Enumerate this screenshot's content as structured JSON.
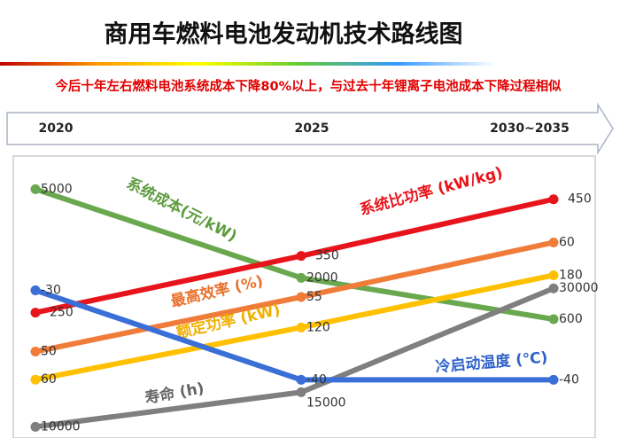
{
  "chart_data": {
    "type": "line",
    "title": "商用车燃料电池发动机技术路线图",
    "subtitle": "今后十年左右燃料电池系统成本下降80%以上，与过去十年锂离子电池成本下降过程相似",
    "categories": [
      "2020",
      "2025",
      "2030~2035"
    ],
    "series": [
      {
        "name": "系统成本(元/kW)",
        "color": "#6aa84f",
        "values": [
          5000,
          2000,
          600
        ],
        "ylim": [
          -3300,
          6000
        ]
      },
      {
        "name": "系统比功率 (kW/kg)",
        "color": "#e8141c",
        "values": [
          250,
          350,
          450
        ],
        "ylim": [
          35,
          520
        ]
      },
      {
        "name": "最高效率 (%)",
        "color": "#f07c3a",
        "values": [
          50,
          55,
          60
        ],
        "ylim": [
          42.4,
          67.6
        ]
      },
      {
        "name": "额定功率 (kW)",
        "color": "#ffc000",
        "values": [
          60,
          120,
          180
        ],
        "ylim": [
          -3,
          313
        ]
      },
      {
        "name": "寿命 (h)",
        "color": "#7f7f7f",
        "values": [
          10000,
          15000,
          30000
        ],
        "ylim": [
          8900,
          48600
        ]
      },
      {
        "name": "冷启动温度 (℃)",
        "color": "#3a6fd8",
        "values": [
          -30,
          -40,
          -40
        ],
        "ylim": [
          -46.1,
          -15.4
        ]
      }
    ]
  }
}
